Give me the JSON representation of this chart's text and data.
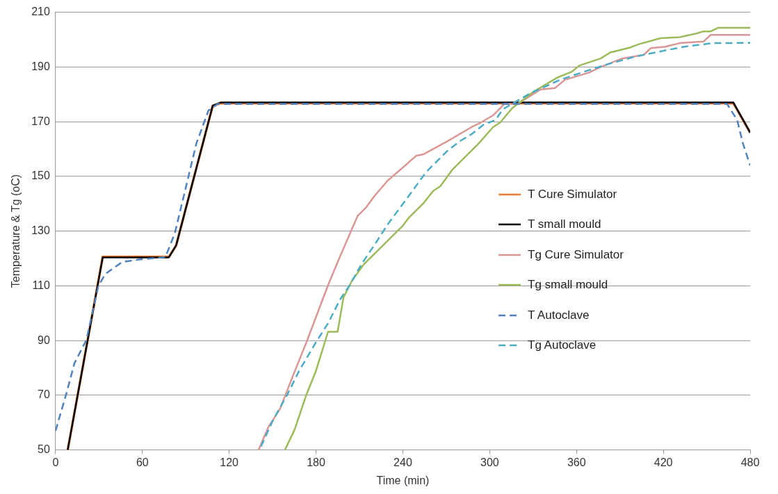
{
  "chart_data": {
    "type": "line",
    "xlabel": "Time (min)",
    "ylabel": "Temperature & Tg (oC)",
    "xlim": [
      0,
      480
    ],
    "xticks": [
      0,
      60,
      120,
      180,
      240,
      300,
      360,
      420,
      480
    ],
    "ylim": [
      50,
      210
    ],
    "yticks": [
      50,
      70,
      90,
      110,
      130,
      150,
      170,
      190,
      210
    ],
    "grid": "y",
    "legend": "right",
    "marker": "none",
    "series": [
      {
        "name": "T Cure Simulator",
        "color": "#ed7d31",
        "line_style": "solid",
        "x": [
          8.4,
          32.6,
          78.3,
          83.3,
          108.6,
          113.9,
          468.4,
          480
        ],
        "values": [
          50,
          120.6,
          120.6,
          124.7,
          175.8,
          176.7,
          176.7,
          166
        ]
      },
      {
        "name": "T small mould",
        "color": "#000000",
        "line_style": "solid",
        "x": [
          8.4,
          32.6,
          78.3,
          83.3,
          108.6,
          113.9,
          468.4,
          480
        ],
        "values": [
          50,
          120.4,
          120.4,
          124.7,
          175.8,
          177,
          177,
          166
        ]
      },
      {
        "name": "Tg Cure Simulator",
        "color": "#d99694",
        "line_style": "solid",
        "x": [
          140.3,
          147,
          155.2,
          163.5,
          173.4,
          188.3,
          196.4,
          208.8,
          214.7,
          220.5,
          229.6,
          239.5,
          249.4,
          254.4,
          270.7,
          287.4,
          294,
          302.3,
          310.4,
          318.8,
          335.2,
          345.2,
          351.9,
          368.4,
          376.7,
          391.6,
          406.4,
          411.4,
          421.3,
          431.2,
          447.8,
          452.7,
          480
        ],
        "values": [
          50,
          58.3,
          65.1,
          76.4,
          89.4,
          110.2,
          120.5,
          135.6,
          138.7,
          142.9,
          148.5,
          153,
          157.6,
          158.1,
          162.8,
          168,
          169.7,
          172.3,
          176.6,
          176.3,
          181.8,
          182.3,
          185.3,
          187.9,
          190,
          193.1,
          194.4,
          196.9,
          197.4,
          198.7,
          199.3,
          201.7,
          201.7
        ]
      },
      {
        "name": "Tg small mould",
        "color": "#9bbb59",
        "line_style": "solid",
        "x": [
          158.5,
          165.1,
          173.4,
          180,
          188.3,
          194.9,
          199,
          204.8,
          213.1,
          223,
          239.5,
          244.5,
          254.4,
          261,
          265.9,
          274.1,
          284,
          292,
          302.3,
          307.3,
          315.5,
          330.4,
          347,
          356.9,
          361.9,
          376.7,
          383.3,
          396.5,
          403,
          418,
          431.3,
          442.8,
          447.8,
          452.7,
          457.7,
          480
        ],
        "values": [
          50,
          57.3,
          70.3,
          79,
          93.2,
          93.2,
          105.8,
          111.8,
          117.9,
          123.1,
          131.7,
          135.1,
          140.3,
          144.7,
          146.4,
          152.4,
          157.6,
          161.8,
          168,
          169.7,
          174.9,
          181,
          186.2,
          188.3,
          190.5,
          193.1,
          195.3,
          197,
          198.3,
          200.5,
          200.9,
          202.2,
          203,
          203,
          204.3,
          204.3
        ]
      },
      {
        "name": "T Autoclave",
        "color": "#4f81bd",
        "line_style": "dashed",
        "x": [
          0,
          7.3,
          13,
          21.3,
          29.6,
          34.5,
          46,
          57.5,
          75.9,
          82.3,
          89.1,
          97.3,
          105.6,
          112,
          464,
          471,
          475,
          480
        ],
        "values": [
          57,
          70.3,
          81.6,
          90.2,
          110,
          114.4,
          118.7,
          119.6,
          120.5,
          129,
          143.9,
          162,
          174,
          176.5,
          176.5,
          170.6,
          162,
          154
        ]
      },
      {
        "name": "Tg Autoclave",
        "color": "#4bacc6",
        "line_style": "dashed",
        "x": [
          142,
          150.2,
          160.2,
          168.4,
          180,
          188.3,
          196.5,
          203.1,
          211.4,
          221.3,
          229.6,
          242.9,
          256.1,
          270.9,
          279.2,
          287.4,
          295.7,
          304,
          309,
          327.1,
          348.6,
          368.4,
          381.6,
          401.5,
          418,
          434.5,
          454.4,
          480
        ],
        "values": [
          51.3,
          60.8,
          70.3,
          79,
          89.4,
          96.3,
          104.9,
          110.1,
          117.9,
          125.7,
          132.5,
          142,
          151.6,
          159.4,
          162.8,
          165.4,
          168.9,
          170.6,
          174.5,
          180.1,
          185.3,
          188.8,
          191,
          193.9,
          195.7,
          197.4,
          198.7,
          198.8
        ]
      }
    ]
  }
}
